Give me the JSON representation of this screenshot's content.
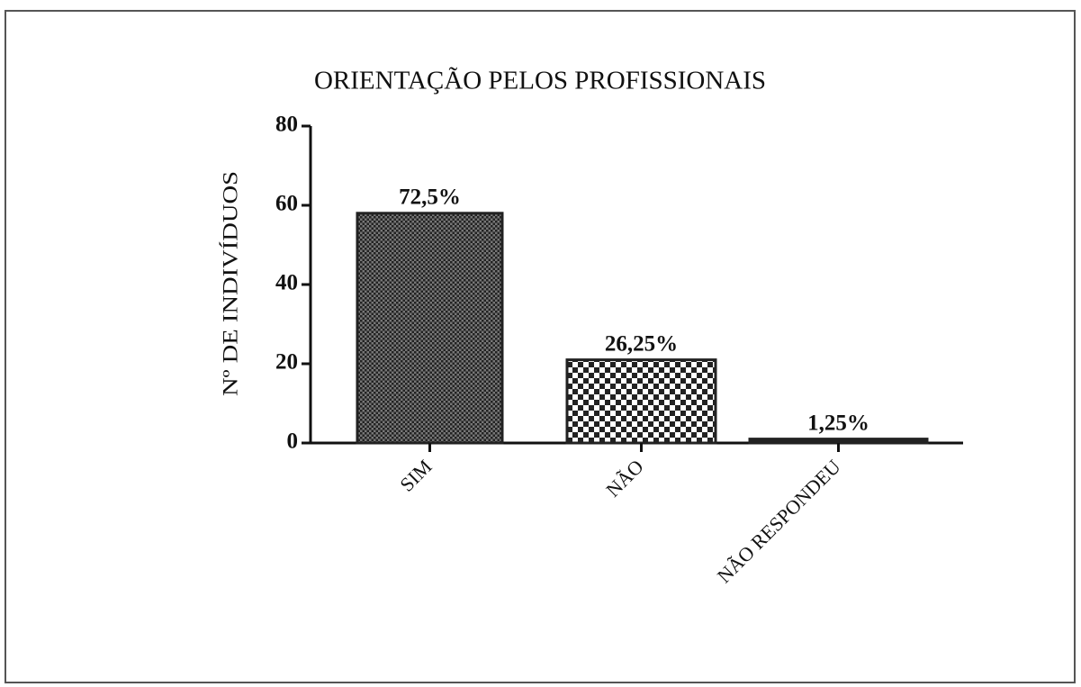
{
  "chart_data": {
    "type": "bar",
    "title": "ORIENTAÇÃO PELOS PROFISSIONAIS",
    "y_label": "Nº DE INDIVÍDUOS",
    "categories": [
      "SIM",
      "NÃO",
      "NÃO RESPONDEU"
    ],
    "values": [
      58,
      21,
      1
    ],
    "annotations": [
      "72,5%",
      "26,25%",
      "1,25%"
    ],
    "color": "#222222",
    "ylim": [
      0,
      80
    ],
    "yticks": [
      0,
      20,
      40,
      60,
      80
    ],
    "grid": false
  }
}
